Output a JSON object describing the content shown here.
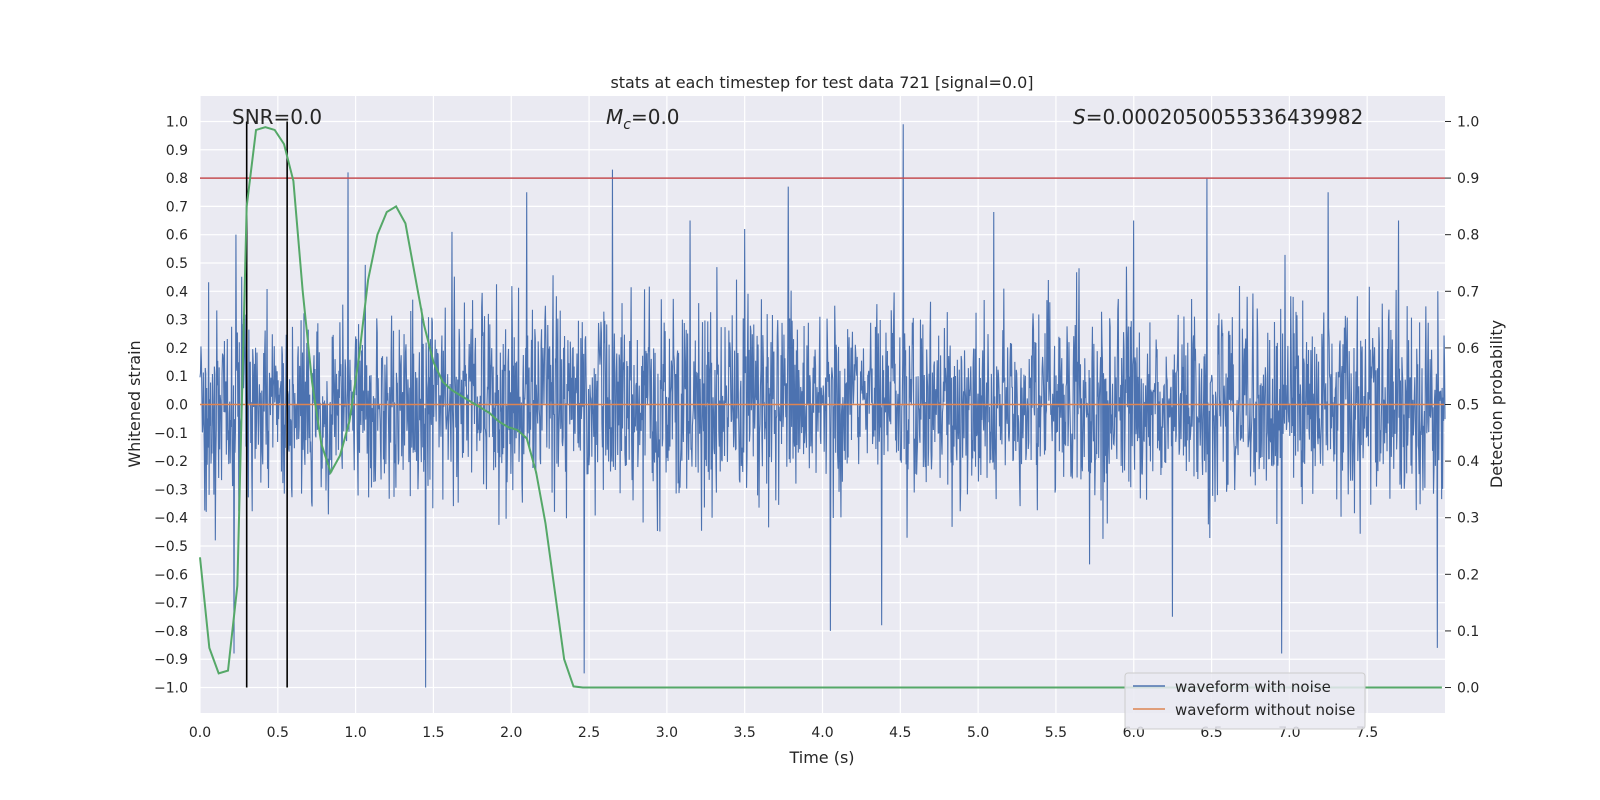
{
  "chart_data": {
    "type": "line",
    "title": "stats at each timestep for test data 721 [signal=0.0]",
    "xlabel": "Time (s)",
    "ylabel_left": "Whitened strain",
    "ylabel_right": "Detection probability",
    "xlim": [
      0.0,
      8.0
    ],
    "ylim_left": [
      -1.09,
      1.09
    ],
    "ylim_right": [
      -0.045,
      1.045
    ],
    "x_ticks": [
      "0.0",
      "0.5",
      "1.0",
      "1.5",
      "2.0",
      "2.5",
      "3.0",
      "3.5",
      "4.0",
      "4.5",
      "5.0",
      "5.5",
      "6.0",
      "6.5",
      "7.0",
      "7.5"
    ],
    "y_ticks_left": [
      "1.0",
      "0.9",
      "0.8",
      "0.7",
      "0.6",
      "0.5",
      "0.4",
      "0.3",
      "0.2",
      "0.1",
      "0.0",
      "−0.1",
      "−0.2",
      "−0.3",
      "−0.4",
      "−0.5",
      "−0.6",
      "−0.7",
      "−0.8",
      "−0.9",
      "−1.0"
    ],
    "y_ticks_right": [
      "1.0",
      "0.9",
      "0.8",
      "0.7",
      "0.6",
      "0.5",
      "0.4",
      "0.3",
      "0.2",
      "0.1",
      "0.0"
    ],
    "annotations": {
      "snr": "SNR=0.0",
      "mc_symbol": "M",
      "mc_sub": "c",
      "mc_value": "=0.0",
      "s_symbol": "S",
      "s_value": "=0.0002050055336439982"
    },
    "threshold_line": {
      "axis": "right",
      "value": 0.9,
      "color": "#c44e52"
    },
    "vertical_markers": [
      0.3,
      0.56
    ],
    "legend": [
      {
        "label": "waveform with noise",
        "color": "#4c72b0"
      },
      {
        "label": "waveform without noise",
        "color": "#dd8452"
      }
    ],
    "series": [
      {
        "name": "waveform with noise",
        "axis": "left",
        "color": "#4c72b0",
        "style": "dense-noise",
        "x_range": [
          0.0,
          8.0
        ],
        "typical_amplitude": 0.3,
        "peaks": [
          {
            "x": 0.1,
            "y": 0.52
          },
          {
            "x": 0.1,
            "y": -0.48
          },
          {
            "x": 0.23,
            "y": 0.6
          },
          {
            "x": 0.22,
            "y": -0.88
          },
          {
            "x": 0.95,
            "y": 0.82
          },
          {
            "x": 1.45,
            "y": -1.0
          },
          {
            "x": 1.62,
            "y": 0.61
          },
          {
            "x": 2.1,
            "y": 0.75
          },
          {
            "x": 2.47,
            "y": -0.95
          },
          {
            "x": 2.65,
            "y": 0.83
          },
          {
            "x": 3.15,
            "y": 0.65
          },
          {
            "x": 3.5,
            "y": 0.62
          },
          {
            "x": 3.78,
            "y": 0.77
          },
          {
            "x": 4.05,
            "y": -0.8
          },
          {
            "x": 4.52,
            "y": 0.99
          },
          {
            "x": 4.38,
            "y": -0.78
          },
          {
            "x": 5.1,
            "y": 0.68
          },
          {
            "x": 6.0,
            "y": 0.65
          },
          {
            "x": 6.47,
            "y": 0.8
          },
          {
            "x": 6.25,
            "y": -0.75
          },
          {
            "x": 6.95,
            "y": -0.88
          },
          {
            "x": 7.25,
            "y": 0.75
          },
          {
            "x": 7.95,
            "y": -0.86
          },
          {
            "x": 7.7,
            "y": 0.65
          }
        ]
      },
      {
        "name": "waveform without noise",
        "axis": "left",
        "color": "#dd8452",
        "x": [
          0.0,
          8.0
        ],
        "y": [
          0.0,
          0.0
        ]
      },
      {
        "name": "detection probability",
        "axis": "right",
        "color": "#55a868",
        "x": [
          0.0,
          0.06,
          0.12,
          0.18,
          0.24,
          0.3,
          0.36,
          0.42,
          0.48,
          0.54,
          0.6,
          0.66,
          0.72,
          0.78,
          0.84,
          0.9,
          0.96,
          1.02,
          1.08,
          1.14,
          1.2,
          1.26,
          1.32,
          1.38,
          1.44,
          1.5,
          1.56,
          1.62,
          1.68,
          1.74,
          1.8,
          1.86,
          1.92,
          1.98,
          2.04,
          2.1,
          2.16,
          2.22,
          2.28,
          2.34,
          2.4,
          2.46,
          2.52,
          7.98
        ],
        "y": [
          0.23,
          0.07,
          0.025,
          0.03,
          0.18,
          0.85,
          0.985,
          0.99,
          0.985,
          0.96,
          0.895,
          0.7,
          0.54,
          0.43,
          0.38,
          0.41,
          0.47,
          0.58,
          0.72,
          0.8,
          0.84,
          0.85,
          0.82,
          0.73,
          0.64,
          0.575,
          0.54,
          0.525,
          0.515,
          0.505,
          0.495,
          0.485,
          0.47,
          0.46,
          0.455,
          0.44,
          0.38,
          0.29,
          0.17,
          0.05,
          0.002,
          0.0,
          0.0,
          0.0
        ]
      }
    ]
  }
}
